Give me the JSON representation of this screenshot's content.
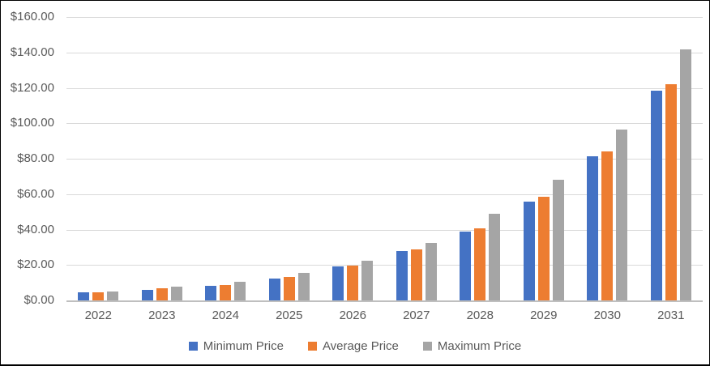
{
  "chart_data": {
    "type": "bar",
    "title": "",
    "categories": [
      "2022",
      "2023",
      "2024",
      "2025",
      "2026",
      "2027",
      "2028",
      "2029",
      "2030",
      "2031"
    ],
    "series": [
      {
        "name": "Minimum Price",
        "color": "#4472C4",
        "values": [
          4.6,
          6.0,
          8.2,
          12.4,
          19.0,
          27.8,
          38.8,
          55.8,
          81.5,
          118.4
        ]
      },
      {
        "name": "Average Price",
        "color": "#ED7D31",
        "values": [
          4.8,
          6.8,
          8.7,
          13.2,
          19.8,
          28.8,
          40.5,
          58.3,
          84.2,
          122.0
        ]
      },
      {
        "name": "Maximum Price",
        "color": "#A5A5A5",
        "values": [
          4.9,
          7.6,
          10.6,
          15.7,
          22.5,
          32.4,
          48.7,
          68.3,
          96.5,
          141.5
        ]
      }
    ],
    "xlabel": "",
    "ylabel": "",
    "ylim": [
      0,
      160
    ],
    "ytick_step": 20,
    "ytick_labels": [
      "$0.00",
      "$20.00",
      "$40.00",
      "$60.00",
      "$80.00",
      "$100.00",
      "$120.00",
      "$140.00",
      "$160.00"
    ],
    "grid": true,
    "legend_position": "bottom",
    "legend_labels": [
      "Minimum Price",
      "Average Price",
      "Maximum Price"
    ]
  },
  "colors": {
    "gridline": "#D9D9D9",
    "axis_line": "#BFBFBF",
    "tick_label": "#595959",
    "background": "#FFFFFF",
    "frame_border": "#000000"
  }
}
